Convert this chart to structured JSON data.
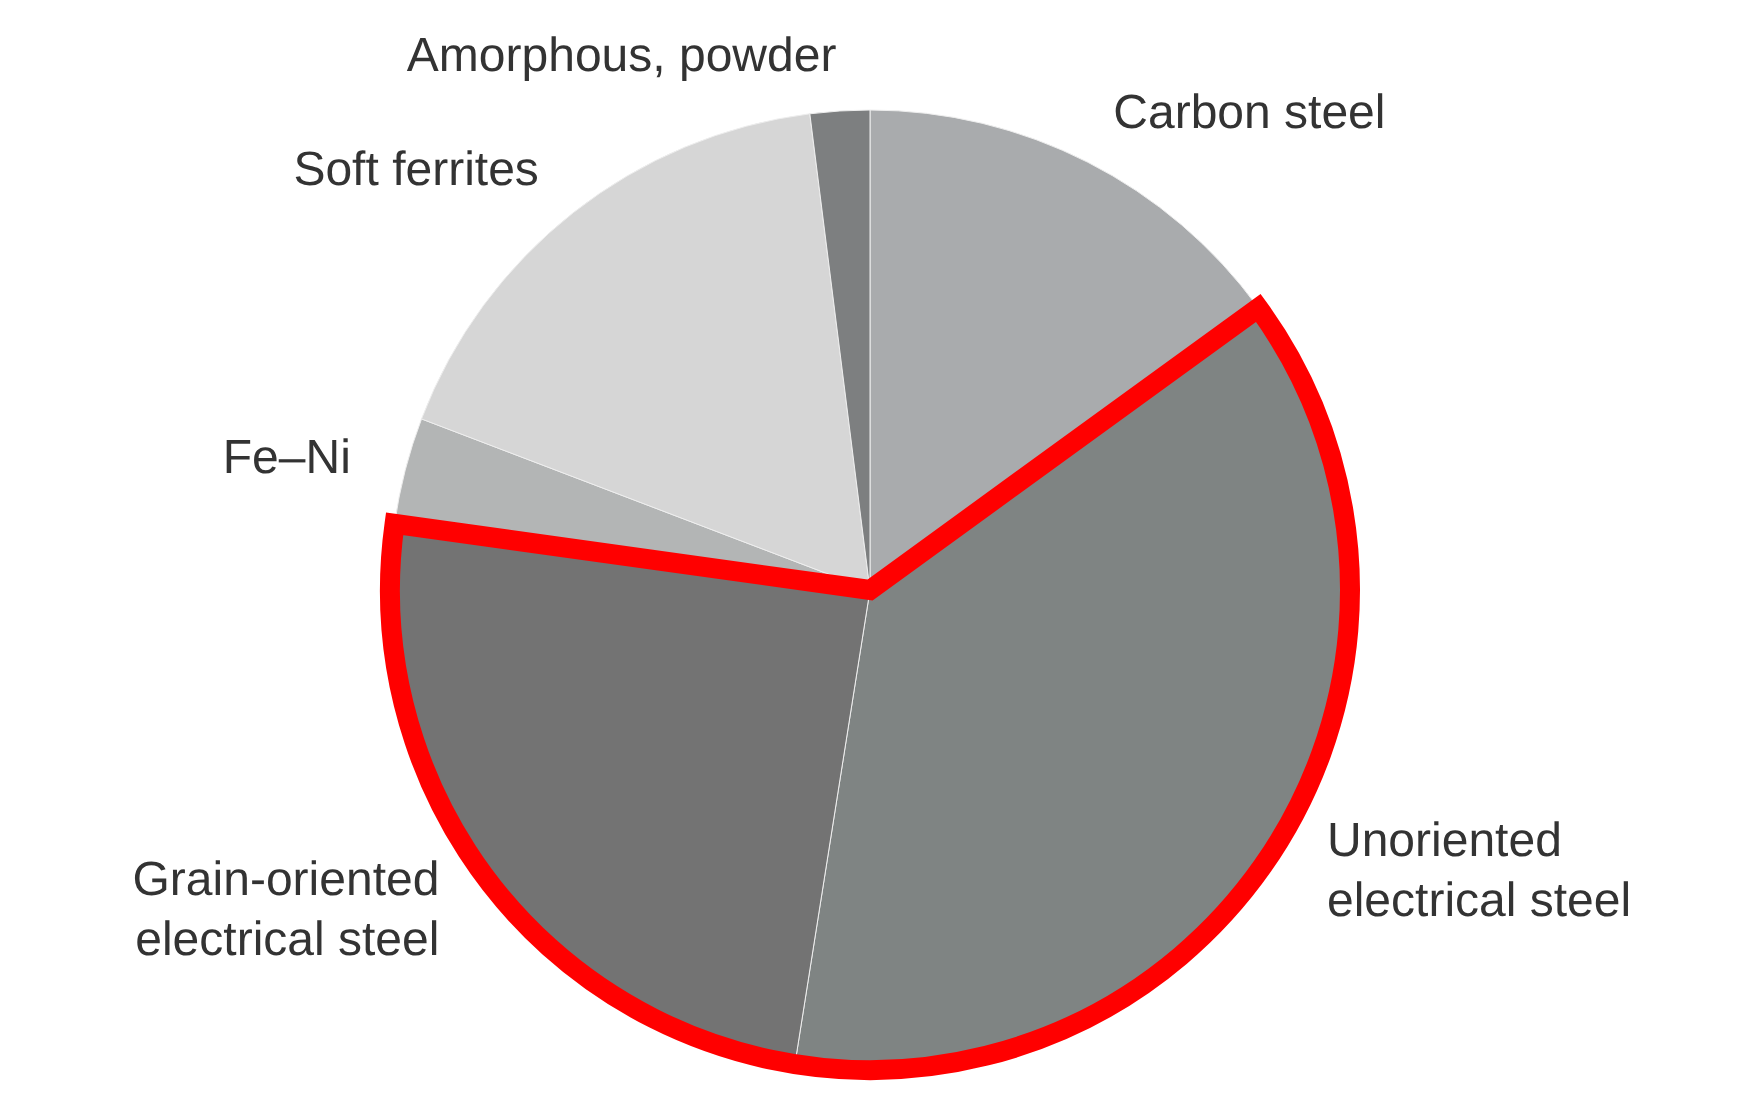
{
  "chart_data": {
    "type": "pie",
    "categories": [
      "Carbon steel",
      "Unoriented electrical steel",
      "Grain-oriented electrical steel",
      "Fe–Ni",
      "Soft ferrites",
      "Amorphous, powder"
    ],
    "values": [
      15,
      37.5,
      24.7,
      3.6,
      17.2,
      2
    ],
    "colors": [
      "#a9abad",
      "#7f8483",
      "#737373",
      "#b3b5b5",
      "#d6d6d6",
      "#7d7f80"
    ]
  }
}
